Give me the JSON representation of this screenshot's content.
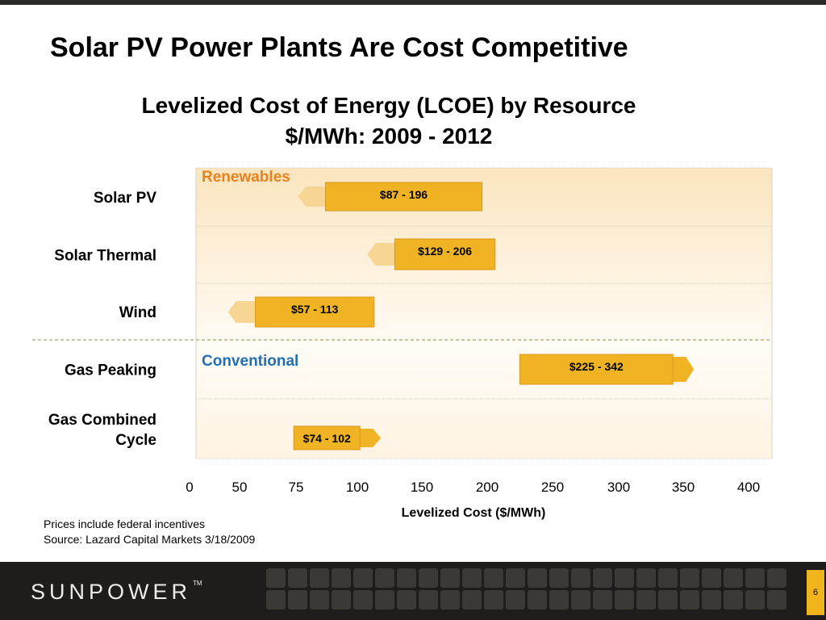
{
  "page": {
    "title": "Solar PV Power Plants Are Cost Competitive",
    "notes": [
      "Prices include federal incentives",
      "Source: Lazard Capital Markets 3/18/2009"
    ],
    "logo": "SUNPOWER",
    "logo_mark": "TM",
    "slide_number": "6"
  },
  "chart_data": {
    "type": "bar",
    "title": [
      "Levelized Cost of Energy (LCOE) by Resource",
      "$/MWh: 2009 - 2012"
    ],
    "xlabel": "Levelized Cost ($/MWh)",
    "x_ticks": [
      0,
      50,
      75,
      100,
      150,
      200,
      250,
      300,
      350,
      400
    ],
    "groups": [
      {
        "label": "Renewables",
        "color": "#e8821e"
      },
      {
        "label": "Conventional",
        "color": "#1f6fb8"
      }
    ],
    "bars": [
      {
        "category": "Solar PV",
        "group": "Renewables",
        "low": 87,
        "high": 196,
        "label": "$87 - 196",
        "trend": "decreasing"
      },
      {
        "category": "Solar Thermal",
        "group": "Renewables",
        "low": 129,
        "high": 206,
        "label": "$129 - 206",
        "trend": "decreasing"
      },
      {
        "category": "Wind",
        "group": "Renewables",
        "low": 57,
        "high": 113,
        "label": "$57 - 113",
        "trend": "decreasing"
      },
      {
        "category": "Gas Peaking",
        "group": "Conventional",
        "low": 225,
        "high": 342,
        "label": "$225 - 342",
        "trend": "increasing"
      },
      {
        "category": "Gas Combined Cycle",
        "group": "Conventional",
        "low": 74,
        "high": 102,
        "label": "$74 - 102",
        "trend": "increasing"
      }
    ],
    "colors": {
      "bar": "#f0b323",
      "bar_border": "#d9971a",
      "arrow_decrease": "#f7d592",
      "arrow_increase": "#f0b323",
      "grid": "#d8cfc0"
    },
    "grid": true,
    "legend": "none"
  }
}
